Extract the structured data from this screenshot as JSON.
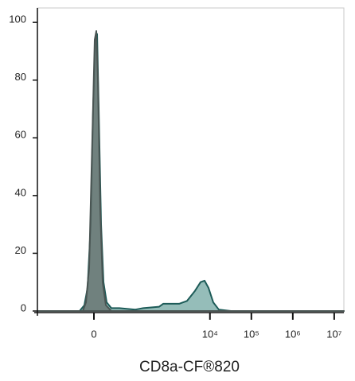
{
  "chart_data": {
    "type": "area",
    "x_label": "CD8a-CF®820",
    "xscale": "biexponential",
    "xlim": [
      -365,
      17100000
    ],
    "ylim": [
      0,
      105
    ],
    "xticks": [
      0,
      {
        "value": 10000,
        "label": "10⁴"
      },
      {
        "value": 100000,
        "label": "10⁵"
      },
      {
        "value": 1000000,
        "label": "10⁶"
      },
      {
        "value": 10000000,
        "label": "10⁷"
      }
    ],
    "yticks": [
      0,
      20,
      40,
      60,
      80,
      100
    ],
    "series": [
      {
        "color": "#8fb9b5",
        "line_color": "#1d5b58",
        "x": [
          -365,
          -27.9,
          -17.6,
          -11.4,
          -5.6,
          -1.4,
          2.8,
          5.6,
          8.5,
          12.9,
          17.6,
          24.3,
          35.7,
          61,
          156,
          244,
          594,
          742,
          1800,
          2800,
          4360,
          5940,
          7400,
          9230,
          12000,
          16400,
          32000,
          17100000
        ],
        "values": [
          0,
          0,
          2,
          8,
          30,
          70,
          95,
          96,
          70,
          30,
          10,
          3,
          1,
          1,
          0.5,
          1,
          1.5,
          2.5,
          2.5,
          3.5,
          7,
          10,
          10.5,
          8,
          3,
          0.5,
          0,
          0
        ]
      },
      {
        "color": "#67726f",
        "line_color": "#4a5553",
        "x": [
          -365,
          -20.8,
          -14.4,
          -8.5,
          -2.8,
          1.4,
          4.2,
          7.0,
          11.4,
          16.0,
          22.6,
          35.7,
          17100000
        ],
        "values": [
          0,
          0,
          3,
          15,
          60,
          94,
          97,
          80,
          35,
          10,
          2,
          0,
          0
        ]
      }
    ]
  }
}
